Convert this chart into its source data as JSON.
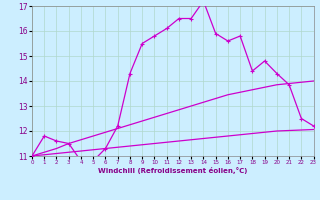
{
  "xlabel": "Windchill (Refroidissement éolien,°C)",
  "background_color": "#cceeff",
  "grid_color": "#b0d8cc",
  "line_color": "#cc00cc",
  "x_hours": [
    0,
    1,
    2,
    3,
    4,
    5,
    6,
    7,
    8,
    9,
    10,
    11,
    12,
    13,
    14,
    15,
    16,
    17,
    18,
    19,
    20,
    21,
    22,
    23
  ],
  "main_line": [
    11.0,
    11.8,
    11.6,
    11.5,
    10.8,
    10.8,
    11.3,
    12.2,
    14.3,
    15.5,
    15.8,
    16.1,
    16.5,
    16.5,
    17.2,
    15.9,
    15.6,
    15.8,
    14.4,
    14.8,
    14.3,
    13.85,
    12.5,
    12.2
  ],
  "smooth_line1": [
    11.0,
    11.15,
    11.3,
    11.5,
    11.65,
    11.8,
    11.95,
    12.1,
    12.25,
    12.4,
    12.55,
    12.7,
    12.85,
    13.0,
    13.15,
    13.3,
    13.45,
    13.55,
    13.65,
    13.75,
    13.85,
    13.9,
    13.95,
    14.0
  ],
  "smooth_line2": [
    11.0,
    11.05,
    11.1,
    11.15,
    11.2,
    11.25,
    11.3,
    11.35,
    11.4,
    11.45,
    11.5,
    11.55,
    11.6,
    11.65,
    11.7,
    11.75,
    11.8,
    11.85,
    11.9,
    11.95,
    12.0,
    12.02,
    12.04,
    12.06
  ],
  "ylim_min": 11,
  "ylim_max": 17,
  "xlim_min": 0,
  "xlim_max": 23
}
